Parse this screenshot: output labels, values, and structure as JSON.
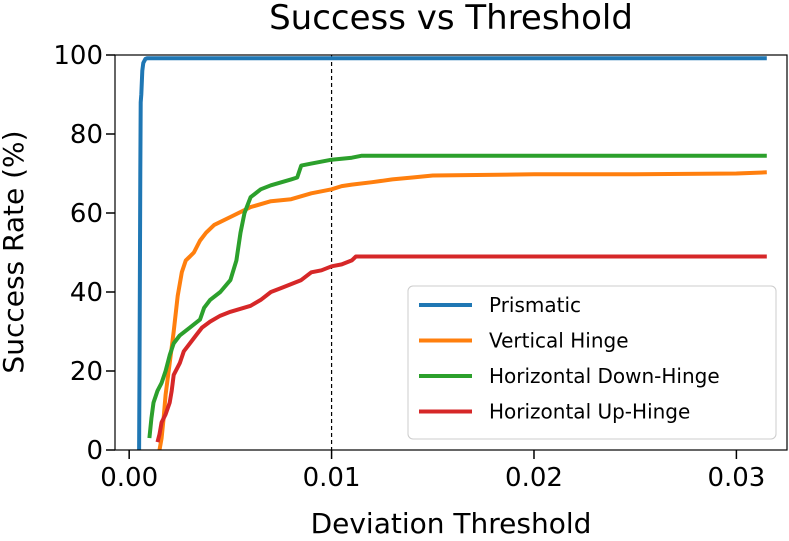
{
  "chart_data": {
    "type": "line",
    "title": "Success vs Threshold",
    "xlabel": "Deviation Threshold",
    "ylabel": "Success Rate (%)",
    "xlim": [
      -0.0007,
      0.0325
    ],
    "ylim": [
      0,
      100
    ],
    "xticks": [
      0.0,
      0.01,
      0.02,
      0.03
    ],
    "xtick_labels": [
      "0.00",
      "0.01",
      "0.02",
      "0.03"
    ],
    "yticks": [
      0,
      20,
      40,
      60,
      80,
      100
    ],
    "ytick_labels": [
      "0",
      "20",
      "40",
      "60",
      "80",
      "100"
    ],
    "reference_line": {
      "x": 0.01,
      "style": "dashed",
      "color": "#000000"
    },
    "legend_position": "lower-right",
    "series": [
      {
        "name": "Prismatic",
        "color": "#1f77b4",
        "points": [
          [
            0.00049,
            0
          ],
          [
            0.00051,
            20
          ],
          [
            0.00053,
            45
          ],
          [
            0.00055,
            70
          ],
          [
            0.00057,
            88
          ],
          [
            0.0006,
            90
          ],
          [
            0.00065,
            96
          ],
          [
            0.0007,
            98
          ],
          [
            0.0008,
            99
          ],
          [
            0.0009,
            99.2
          ],
          [
            0.0315,
            99.2
          ]
        ]
      },
      {
        "name": "Vertical Hinge",
        "color": "#ff7f0e",
        "points": [
          [
            0.0015,
            0
          ],
          [
            0.0016,
            3
          ],
          [
            0.0017,
            8
          ],
          [
            0.0018,
            14
          ],
          [
            0.002,
            22
          ],
          [
            0.0022,
            30
          ],
          [
            0.0024,
            39
          ],
          [
            0.0026,
            45
          ],
          [
            0.0028,
            48
          ],
          [
            0.003,
            49
          ],
          [
            0.0032,
            50
          ],
          [
            0.0035,
            53
          ],
          [
            0.0038,
            55
          ],
          [
            0.0042,
            57
          ],
          [
            0.005,
            59
          ],
          [
            0.006,
            61.5
          ],
          [
            0.007,
            63
          ],
          [
            0.008,
            63.5
          ],
          [
            0.009,
            65
          ],
          [
            0.0095,
            65.5
          ],
          [
            0.01,
            66
          ],
          [
            0.0105,
            66.8
          ],
          [
            0.011,
            67.2
          ],
          [
            0.012,
            67.8
          ],
          [
            0.013,
            68.5
          ],
          [
            0.014,
            69
          ],
          [
            0.015,
            69.5
          ],
          [
            0.02,
            69.8
          ],
          [
            0.025,
            69.8
          ],
          [
            0.03,
            70
          ],
          [
            0.0315,
            70.3
          ]
        ]
      },
      {
        "name": "Horizontal Down-Hinge",
        "color": "#2ca02c",
        "points": [
          [
            0.001,
            3
          ],
          [
            0.0011,
            8
          ],
          [
            0.0012,
            12
          ],
          [
            0.0014,
            15
          ],
          [
            0.0016,
            17
          ],
          [
            0.0018,
            20
          ],
          [
            0.002,
            24
          ],
          [
            0.0022,
            27
          ],
          [
            0.0025,
            29
          ],
          [
            0.003,
            31
          ],
          [
            0.0035,
            33
          ],
          [
            0.0037,
            36
          ],
          [
            0.004,
            38
          ],
          [
            0.0045,
            40
          ],
          [
            0.005,
            43
          ],
          [
            0.0053,
            48
          ],
          [
            0.0055,
            55
          ],
          [
            0.0057,
            60
          ],
          [
            0.006,
            64
          ],
          [
            0.0065,
            66
          ],
          [
            0.007,
            67
          ],
          [
            0.008,
            68.5
          ],
          [
            0.0083,
            69
          ],
          [
            0.0085,
            72
          ],
          [
            0.009,
            72.5
          ],
          [
            0.01,
            73.5
          ],
          [
            0.011,
            74
          ],
          [
            0.0115,
            74.5
          ],
          [
            0.0315,
            74.5
          ]
        ]
      },
      {
        "name": "Horizontal Up-Hinge",
        "color": "#d62728",
        "points": [
          [
            0.0014,
            2
          ],
          [
            0.0015,
            4
          ],
          [
            0.0016,
            7
          ],
          [
            0.0018,
            9
          ],
          [
            0.002,
            12
          ],
          [
            0.0021,
            15
          ],
          [
            0.0022,
            19
          ],
          [
            0.0025,
            22
          ],
          [
            0.0027,
            25
          ],
          [
            0.003,
            27
          ],
          [
            0.0033,
            29
          ],
          [
            0.0036,
            31
          ],
          [
            0.004,
            32.5
          ],
          [
            0.0045,
            34
          ],
          [
            0.005,
            35
          ],
          [
            0.006,
            36.5
          ],
          [
            0.0065,
            38
          ],
          [
            0.007,
            40
          ],
          [
            0.0075,
            41
          ],
          [
            0.008,
            42
          ],
          [
            0.0085,
            43
          ],
          [
            0.009,
            45
          ],
          [
            0.0095,
            45.5
          ],
          [
            0.01,
            46.5
          ],
          [
            0.0105,
            47
          ],
          [
            0.011,
            48
          ],
          [
            0.0112,
            49
          ],
          [
            0.0315,
            49
          ]
        ]
      }
    ]
  }
}
